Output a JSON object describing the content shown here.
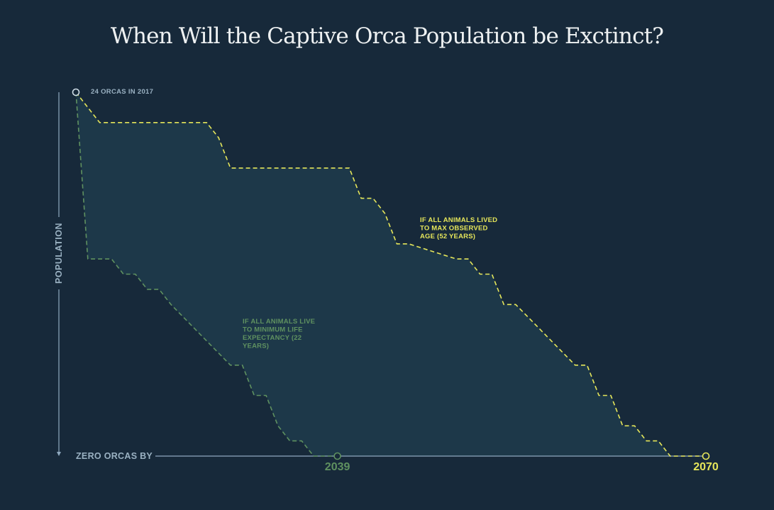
{
  "title": "When Will the Captive Orca Population be Exctinct?",
  "chart_data": {
    "type": "area",
    "title": "When Will the Captive Orca Population be Exctinct?",
    "xlabel": "",
    "ylabel": "POPULATION",
    "xlim": [
      2017,
      2070
    ],
    "ylim": [
      0,
      24
    ],
    "start_label": "24 ORCAS IN 2017",
    "zero_label": "ZERO ORCAS BY",
    "series": [
      {
        "name": "IF ALL ANIMALS LIVED TO MAX OBSERVED AGE (52 YEARS)",
        "label_lines": [
          "IF ALL ANIMALS LIVED",
          "TO MAX OBSERVED",
          "AGE (52 YEARS)"
        ],
        "end_year_label": "2070",
        "color": "#e6e65a",
        "x": [
          2017,
          2019,
          2028,
          2029,
          2030,
          2040,
          2041,
          2042,
          2043,
          2044,
          2045,
          2049,
          2050,
          2051,
          2052,
          2053,
          2054,
          2059,
          2060,
          2061,
          2062,
          2063,
          2064,
          2065,
          2066,
          2067,
          2068,
          2070
        ],
        "y": [
          24,
          22,
          22,
          21,
          19,
          19,
          17,
          17,
          16,
          14,
          14,
          13,
          13,
          12,
          12,
          10,
          10,
          6,
          6,
          4,
          4,
          2,
          2,
          1,
          1,
          0,
          0,
          0
        ]
      },
      {
        "name": "IF ALL ANIMALS LIVE TO MINIMUM LIFE EXPECTANCY (22 YEARS)",
        "label_lines": [
          "IF ALL ANIMALS LIVE",
          "TO MINIMUM LIFE",
          "EXPECTANCY (22",
          "YEARS)"
        ],
        "end_year_label": "2039",
        "color": "#5f9160",
        "x": [
          2017,
          2018,
          2020,
          2021,
          2022,
          2023,
          2024,
          2025,
          2030,
          2031,
          2032,
          2033,
          2034,
          2035,
          2036,
          2037,
          2038,
          2039
        ],
        "y": [
          24,
          13,
          13,
          12,
          12,
          11,
          11,
          10,
          6,
          6,
          4,
          4,
          2,
          1,
          1,
          0,
          0,
          0
        ]
      }
    ],
    "colors": {
      "background": "#17293a",
      "fill": "#1d3849",
      "axis": "#8fa9bf",
      "axis_label": "#9ab1c2"
    }
  }
}
